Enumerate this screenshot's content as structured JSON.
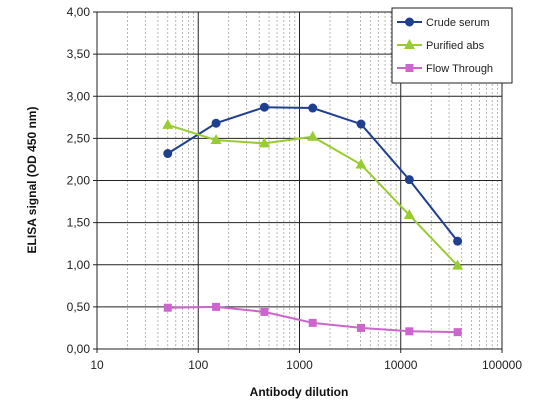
{
  "chart_data": {
    "type": "line",
    "title": "",
    "xlabel": "Antibody dilution",
    "ylabel": "ELISA signal (OD 450 nm)",
    "xscale": "log",
    "xlim": [
      10,
      100000
    ],
    "ylim": [
      0,
      4
    ],
    "grid": true,
    "legend_position": "top-right",
    "x_tick_labels": [
      "10",
      "100",
      "1000",
      "10000",
      "100000"
    ],
    "y_tick_labels": [
      "0,00",
      "0,50",
      "1,00",
      "1,50",
      "2,00",
      "2,50",
      "3,00",
      "3,50",
      "4,00"
    ],
    "x": [
      50,
      150,
      450,
      1350,
      4050,
      12150,
      36450
    ],
    "series": [
      {
        "name": "Crude serum",
        "color": "#1f3f8f",
        "marker": "circle",
        "values": [
          2.32,
          2.68,
          2.87,
          2.86,
          2.67,
          2.01,
          1.28
        ]
      },
      {
        "name": "Purified abs",
        "color": "#99cc33",
        "marker": "triangle",
        "values": [
          2.66,
          2.48,
          2.44,
          2.52,
          2.19,
          1.59,
          0.99
        ]
      },
      {
        "name": "Flow Through",
        "color": "#cc66cc",
        "marker": "square",
        "values": [
          0.49,
          0.5,
          0.44,
          0.31,
          0.25,
          0.21,
          0.2
        ]
      }
    ]
  }
}
